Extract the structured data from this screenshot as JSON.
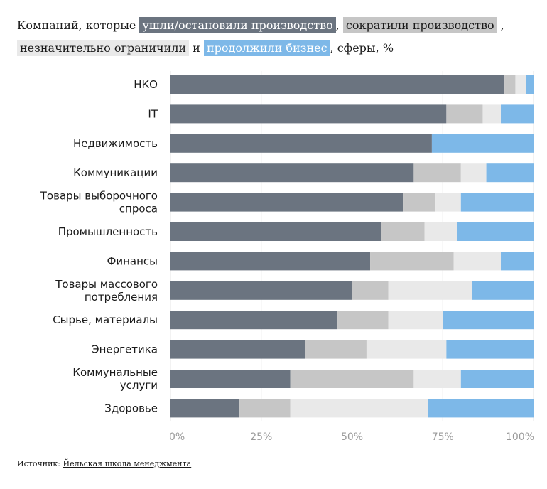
{
  "title": {
    "prefix": "Компаний, которые",
    "legend_1": "ушли/остановили производство",
    "sep_1": ",",
    "legend_2": "сократили производство",
    "sep_2": ",",
    "legend_3": "незначительно ограничили",
    "conj": "и",
    "legend_4": "продолжили бизнес",
    "suffix": ", сферы, %"
  },
  "colors": {
    "exited": "#6b7480",
    "reduced": "#c6c6c6",
    "limited": "#e9e9e9",
    "continued": "#7db8e8"
  },
  "source": {
    "label": "Источник:",
    "name": "Йельская школа менеджмента"
  },
  "chart_data": {
    "type": "bar",
    "orientation": "horizontal",
    "stacked": true,
    "categories": [
      [
        "НКО"
      ],
      [
        "IT"
      ],
      [
        "Недвижимость"
      ],
      [
        "Коммуникации"
      ],
      [
        "Товары выборочного",
        "спроса"
      ],
      [
        "Промышленность"
      ],
      [
        "Финансы"
      ],
      [
        "Товары массового",
        "потребления"
      ],
      [
        "Сырье, материалы"
      ],
      [
        "Энергетика"
      ],
      [
        "Коммунальные",
        "услуги"
      ],
      [
        "Здоровье"
      ]
    ],
    "series": [
      {
        "name": "ушли/остановили производство",
        "values": [
          92,
          76,
          72,
          67,
          64,
          58,
          55,
          50,
          46,
          37,
          33,
          19
        ]
      },
      {
        "name": "сократили производство",
        "values": [
          3,
          10,
          0,
          13,
          9,
          12,
          23,
          10,
          14,
          17,
          34,
          14
        ]
      },
      {
        "name": "незначительно ограничили",
        "values": [
          3,
          5,
          0,
          7,
          7,
          9,
          13,
          23,
          15,
          22,
          13,
          38
        ]
      },
      {
        "name": "продолжили бизнес",
        "values": [
          2,
          9,
          28,
          13,
          20,
          21,
          9,
          17,
          25,
          24,
          20,
          29
        ]
      }
    ],
    "xlim": [
      0,
      100
    ],
    "xticks": [
      "0%",
      "25%",
      "50%",
      "75%",
      "100%"
    ],
    "grid": true
  }
}
